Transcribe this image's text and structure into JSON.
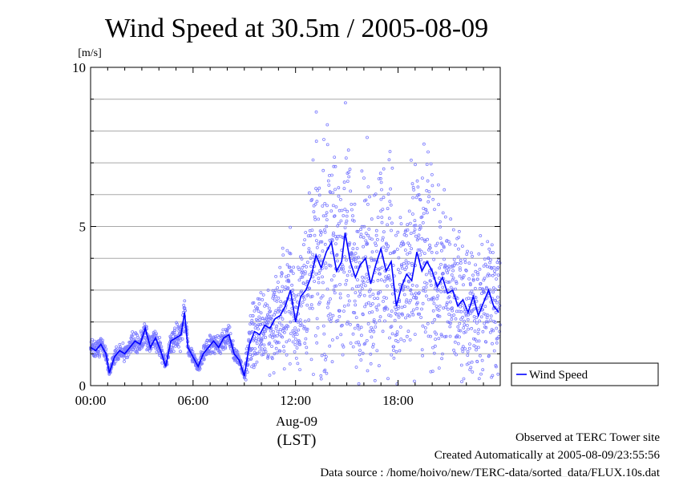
{
  "chart_data": {
    "type": "scatter",
    "title": "Wind Speed at 30.5m / 2005-08-09",
    "ylabel": "[m/s]",
    "ylim": [
      0,
      10
    ],
    "yticks": [
      "0",
      "5",
      "10"
    ],
    "xlim": [
      "00:00",
      "23:59"
    ],
    "xticks": [
      "00:00",
      "06:00",
      "12:00",
      "18:00"
    ],
    "x_date_label": "Aug-09",
    "x_tz_label": "(LST)",
    "grid": true,
    "legend_position": "right",
    "series": [
      {
        "name": "Wind Speed",
        "color": "#0000ff",
        "line_points": [
          [
            "00:00",
            1.2
          ],
          [
            "00:18",
            1.1
          ],
          [
            "00:36",
            1.3
          ],
          [
            "00:54",
            1.0
          ],
          [
            "01:06",
            0.4
          ],
          [
            "01:24",
            0.9
          ],
          [
            "01:42",
            1.1
          ],
          [
            "02:00",
            1.0
          ],
          [
            "02:18",
            1.2
          ],
          [
            "02:36",
            1.4
          ],
          [
            "02:54",
            1.3
          ],
          [
            "03:12",
            1.8
          ],
          [
            "03:30",
            1.2
          ],
          [
            "03:48",
            1.5
          ],
          [
            "04:06",
            1.1
          ],
          [
            "04:24",
            0.6
          ],
          [
            "04:42",
            1.4
          ],
          [
            "05:00",
            1.5
          ],
          [
            "05:18",
            1.6
          ],
          [
            "05:30",
            2.3
          ],
          [
            "05:42",
            1.2
          ],
          [
            "06:00",
            0.9
          ],
          [
            "06:18",
            0.6
          ],
          [
            "06:36",
            1.0
          ],
          [
            "06:54",
            1.2
          ],
          [
            "07:12",
            1.4
          ],
          [
            "07:30",
            1.2
          ],
          [
            "07:48",
            1.5
          ],
          [
            "08:06",
            1.6
          ],
          [
            "08:24",
            1.0
          ],
          [
            "08:42",
            0.8
          ],
          [
            "09:00",
            0.3
          ],
          [
            "09:18",
            1.3
          ],
          [
            "09:36",
            1.7
          ],
          [
            "09:54",
            1.6
          ],
          [
            "10:12",
            1.9
          ],
          [
            "10:30",
            1.8
          ],
          [
            "10:48",
            2.1
          ],
          [
            "11:06",
            2.2
          ],
          [
            "11:24",
            2.5
          ],
          [
            "11:42",
            3.0
          ],
          [
            "12:00",
            2.0
          ],
          [
            "12:18",
            2.8
          ],
          [
            "12:36",
            3.0
          ],
          [
            "12:54",
            3.4
          ],
          [
            "13:12",
            4.1
          ],
          [
            "13:30",
            3.7
          ],
          [
            "13:48",
            4.2
          ],
          [
            "14:06",
            4.5
          ],
          [
            "14:24",
            3.6
          ],
          [
            "14:42",
            3.9
          ],
          [
            "14:54",
            4.8
          ],
          [
            "15:12",
            3.9
          ],
          [
            "15:30",
            3.4
          ],
          [
            "15:48",
            3.8
          ],
          [
            "16:06",
            4.0
          ],
          [
            "16:24",
            3.2
          ],
          [
            "16:42",
            3.8
          ],
          [
            "17:00",
            4.3
          ],
          [
            "17:18",
            3.6
          ],
          [
            "17:36",
            3.9
          ],
          [
            "17:54",
            2.5
          ],
          [
            "18:12",
            3.1
          ],
          [
            "18:30",
            3.5
          ],
          [
            "18:48",
            3.3
          ],
          [
            "19:06",
            4.2
          ],
          [
            "19:24",
            3.6
          ],
          [
            "19:42",
            3.9
          ],
          [
            "20:00",
            3.6
          ],
          [
            "20:18",
            3.1
          ],
          [
            "20:36",
            3.4
          ],
          [
            "20:54",
            2.9
          ],
          [
            "21:12",
            3.0
          ],
          [
            "21:30",
            2.5
          ],
          [
            "21:48",
            2.7
          ],
          [
            "22:06",
            2.3
          ],
          [
            "22:24",
            2.8
          ],
          [
            "22:42",
            2.2
          ],
          [
            "23:00",
            2.6
          ],
          [
            "23:18",
            3.0
          ],
          [
            "23:36",
            2.5
          ],
          [
            "23:54",
            2.3
          ]
        ]
      }
    ]
  },
  "footer": {
    "line1": "Observed at TERC Tower site",
    "line2": "Created Automatically at 2005-08-09/23:55:56",
    "line3": "Data source : /home/hoivo/new/TERC-data/sorted_data/FLUX.10s.dat"
  }
}
